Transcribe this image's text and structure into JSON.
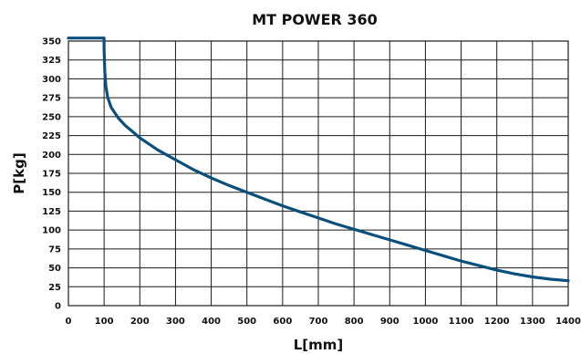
{
  "chart_data": {
    "type": "line",
    "title": "MT POWER 360",
    "xlabel": "L[mm]",
    "ylabel": "P[kg]",
    "xlim": [
      0,
      1400
    ],
    "ylim": [
      0,
      350
    ],
    "xticks": [
      "0",
      "100",
      "200",
      "300",
      "400",
      "500",
      "600",
      "700",
      "800",
      "900",
      "1000",
      "1100",
      "1200",
      "1300",
      "1400"
    ],
    "yticks": [
      "0",
      "25",
      "50",
      "75",
      "100",
      "125",
      "150",
      "175",
      "200",
      "225",
      "250",
      "275",
      "300",
      "325",
      "350"
    ],
    "grid": true,
    "line_color": "#0b4f7c",
    "series": [
      {
        "x": [
          0,
          100,
          100,
          102,
          105,
          110,
          120,
          140,
          160,
          180,
          200,
          250,
          300,
          350,
          400,
          450,
          500,
          550,
          600,
          650,
          700,
          750,
          800,
          850,
          900,
          950,
          1000,
          1050,
          1100,
          1150,
          1200,
          1250,
          1300,
          1350,
          1400
        ],
        "y": [
          354,
          354,
          340,
          310,
          290,
          275,
          262,
          248,
          238,
          230,
          222,
          206,
          193,
          180,
          169,
          159,
          150,
          141,
          132,
          124,
          116,
          108,
          101,
          94,
          87,
          80,
          73,
          66,
          59,
          53,
          47,
          42,
          38,
          35,
          33
        ]
      }
    ]
  }
}
